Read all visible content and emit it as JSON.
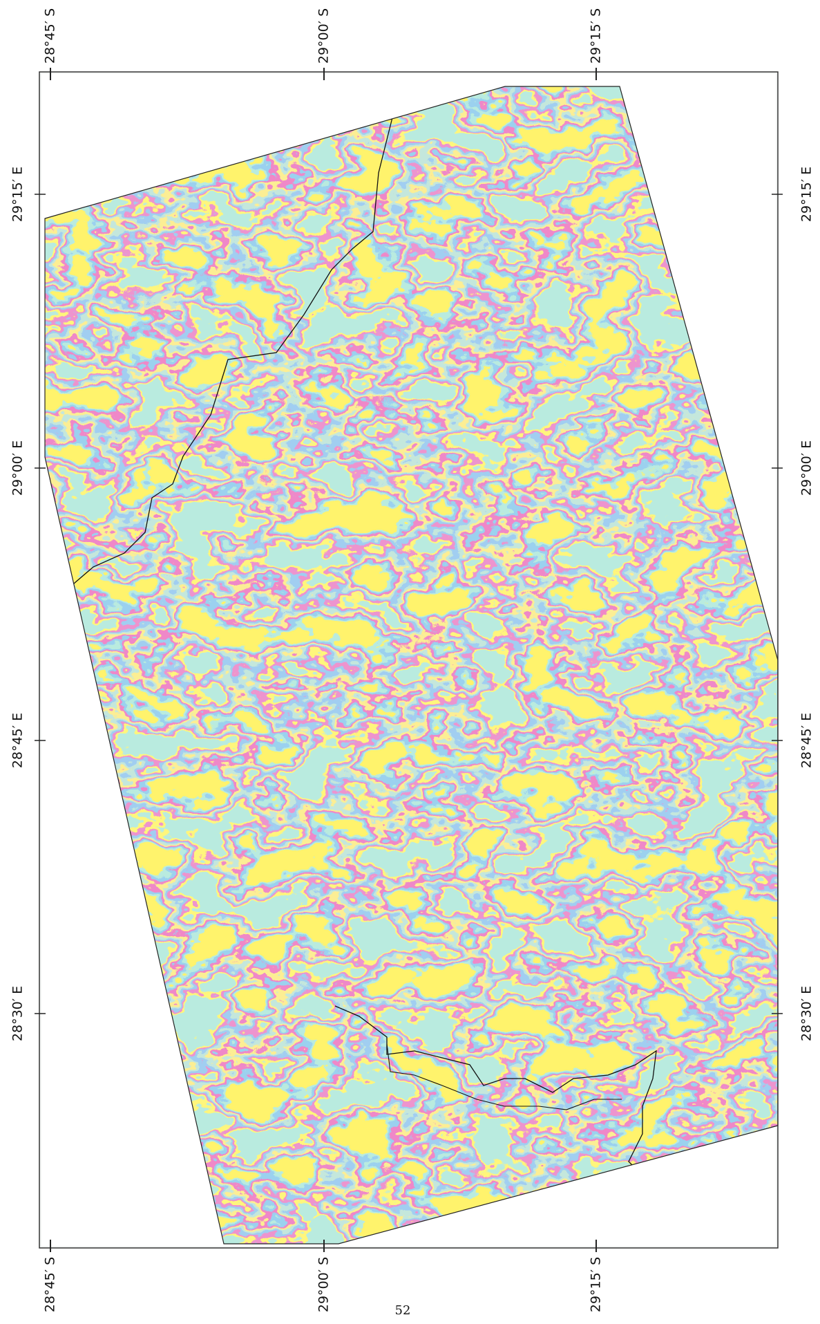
{
  "map": {
    "top_labels": [
      "28°45′ S",
      "29°00′ S",
      "29°15′ S"
    ],
    "bottom_labels": [
      "28°45′ S",
      "29°00′ S",
      "29°15′ S"
    ],
    "left_labels": [
      "29°15′ E",
      "29°00′ E",
      "28°45′ E",
      "28°30′ E"
    ],
    "right_labels": [
      "29°15′ E",
      "29°00′ E",
      "28°45′ E",
      "28°30′ E"
    ],
    "page_number": "52"
  }
}
